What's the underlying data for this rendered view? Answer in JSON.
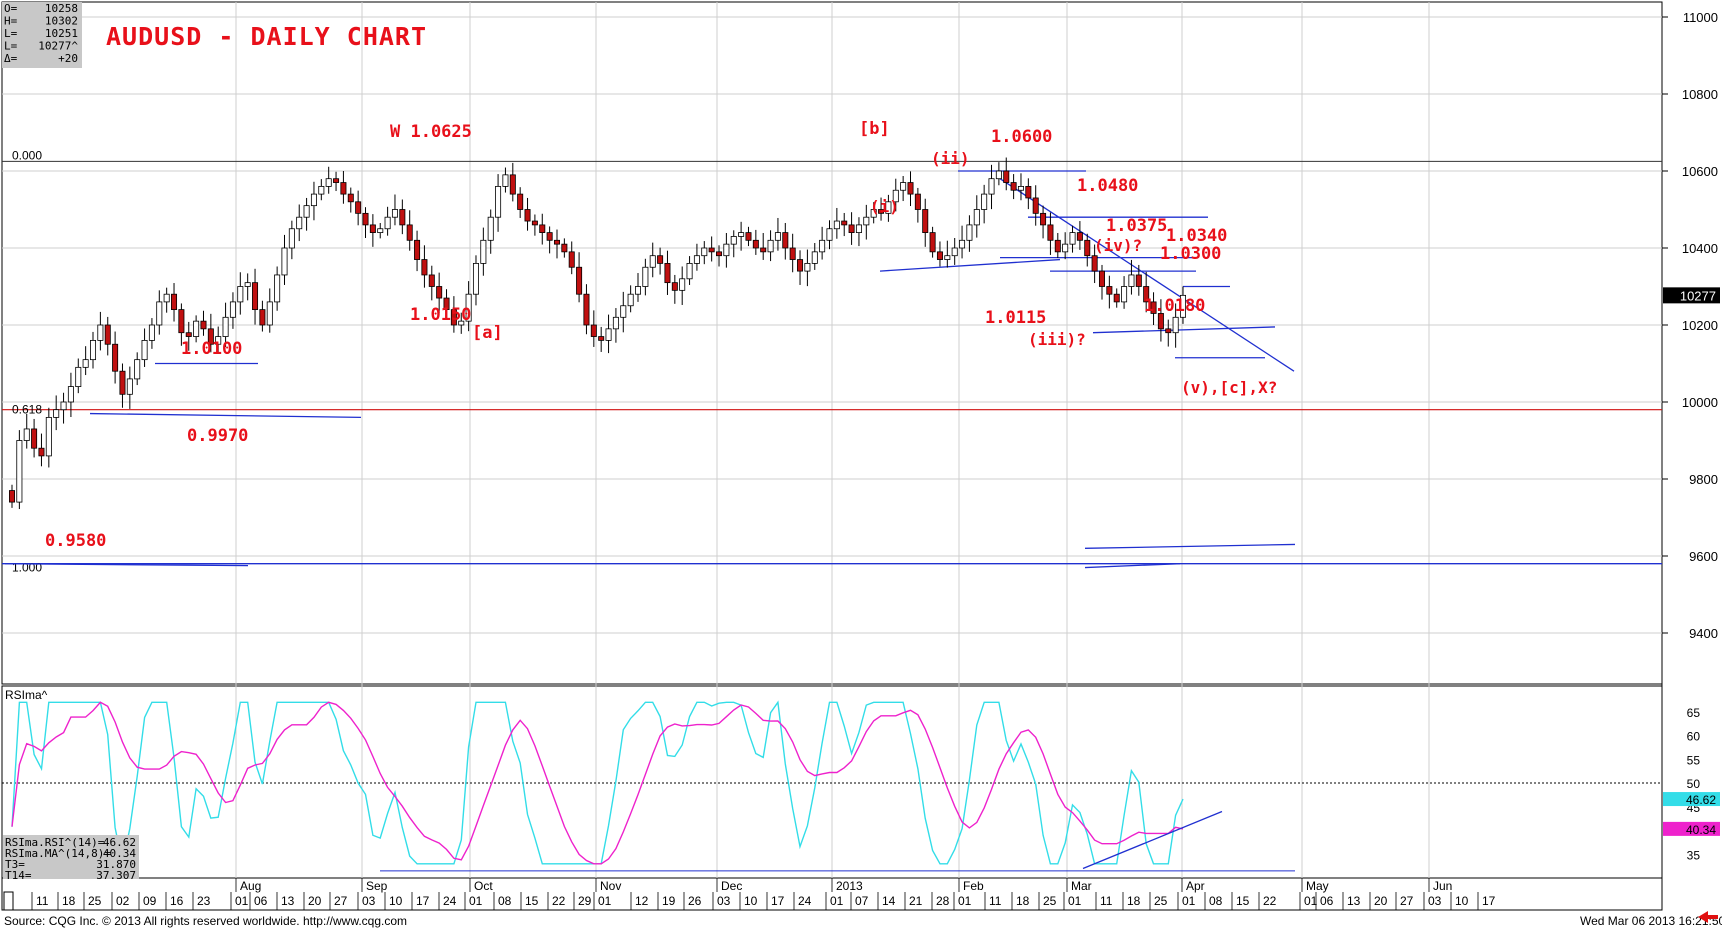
{
  "ohlc_box": [
    {
      "k": "O=",
      "v": "10258"
    },
    {
      "k": "H=",
      "v": "10302"
    },
    {
      "k": "L=",
      "v": "10251"
    },
    {
      "k": "L=",
      "v": "10277^"
    },
    {
      "k": "Δ=",
      "v": "+20"
    }
  ],
  "title": "AUDUSD - DAILY CHART",
  "price_axis": [
    "11000",
    "10800",
    "10600",
    "10400",
    "10200",
    "10000",
    "9800",
    "9600",
    "9400"
  ],
  "last_price": "10277",
  "fib_labels": {
    "top": "0.000",
    "mid": "0.618",
    "bottom": "1.000"
  },
  "annotations": [
    {
      "text": "W 1.0625",
      "dx": 390,
      "dy": 137,
      "size": 17
    },
    {
      "text": "1.0150",
      "dx": 410,
      "dy": 320,
      "size": 17
    },
    {
      "text": "[a]",
      "dx": 472,
      "dy": 338,
      "size": 17
    },
    {
      "text": "1.0100",
      "dx": 181,
      "dy": 354,
      "size": 17
    },
    {
      "text": "0.9970",
      "dx": 187,
      "dy": 441,
      "size": 17
    },
    {
      "text": "0.9580",
      "dx": 45,
      "dy": 546,
      "size": 17
    },
    {
      "text": "[b]",
      "dx": 859,
      "dy": 134,
      "size": 17
    },
    {
      "text": "1.0600",
      "dx": 991,
      "dy": 142,
      "size": 17
    },
    {
      "text": "(ii)",
      "dx": 931,
      "dy": 164,
      "size": 16
    },
    {
      "text": "(i)",
      "dx": 870,
      "dy": 212,
      "size": 16
    },
    {
      "text": "1.0480",
      "dx": 1077,
      "dy": 191,
      "size": 17
    },
    {
      "text": "1.0375",
      "dx": 1106,
      "dy": 231,
      "size": 17
    },
    {
      "text": "1.0340",
      "dx": 1166,
      "dy": 241,
      "size": 17
    },
    {
      "text": "(iv)?",
      "dx": 1094,
      "dy": 251,
      "size": 16
    },
    {
      "text": "1.0300",
      "dx": 1160,
      "dy": 259,
      "size": 17
    },
    {
      "text": "1.0180",
      "dx": 1144,
      "dy": 311,
      "size": 17
    },
    {
      "text": "1.0115",
      "dx": 985,
      "dy": 323,
      "size": 17
    },
    {
      "text": "(iii)?",
      "dx": 1028,
      "dy": 345,
      "size": 16
    },
    {
      "text": "(v),[c],X?",
      "dx": 1181,
      "dy": 393,
      "size": 16
    }
  ],
  "indicator": {
    "name": "RSIma^",
    "axis": [
      "65",
      "60",
      "55",
      "50",
      "45",
      "35"
    ],
    "rsi_value": "46.62",
    "ma_value": "40.34",
    "readout": [
      {
        "k": "RSIma.RSI^(14)=",
        "v": "46.62"
      },
      {
        "k": "RSIma.MA^(14,8)=",
        "v": "40.34"
      },
      {
        "k": "T3=",
        "v": "31.870"
      },
      {
        "k": "T14=",
        "v": "37.307"
      }
    ]
  },
  "x_axis": {
    "day_ticks": [
      {
        "t": "11",
        "x": 36
      },
      {
        "t": "18",
        "x": 62
      },
      {
        "t": "25",
        "x": 88
      },
      {
        "t": "02",
        "x": 116
      },
      {
        "t": "09",
        "x": 143
      },
      {
        "t": "16",
        "x": 170
      },
      {
        "t": "23",
        "x": 197
      },
      {
        "t": "01",
        "x": 235
      },
      {
        "t": "06",
        "x": 254
      },
      {
        "t": "13",
        "x": 281
      },
      {
        "t": "20",
        "x": 308
      },
      {
        "t": "27",
        "x": 334
      },
      {
        "t": "03",
        "x": 362
      },
      {
        "t": "10",
        "x": 389
      },
      {
        "t": "17",
        "x": 416
      },
      {
        "t": "24",
        "x": 443
      },
      {
        "t": "01",
        "x": 469
      },
      {
        "t": "08",
        "x": 498
      },
      {
        "t": "15",
        "x": 525
      },
      {
        "t": "22",
        "x": 552
      },
      {
        "t": "29",
        "x": 578
      },
      {
        "t": "01",
        "x": 598
      },
      {
        "t": "12",
        "x": 635
      },
      {
        "t": "19",
        "x": 662
      },
      {
        "t": "26",
        "x": 688
      },
      {
        "t": "03",
        "x": 717
      },
      {
        "t": "10",
        "x": 744
      },
      {
        "t": "17",
        "x": 771
      },
      {
        "t": "24",
        "x": 798
      },
      {
        "t": "01",
        "x": 830
      },
      {
        "t": "07",
        "x": 855
      },
      {
        "t": "14",
        "x": 882
      },
      {
        "t": "21",
        "x": 909
      },
      {
        "t": "28",
        "x": 936
      },
      {
        "t": "01",
        "x": 958
      },
      {
        "t": "11",
        "x": 989
      },
      {
        "t": "18",
        "x": 1016
      },
      {
        "t": "25",
        "x": 1043
      },
      {
        "t": "01",
        "x": 1068
      },
      {
        "t": "11",
        "x": 1100
      },
      {
        "t": "18",
        "x": 1127
      },
      {
        "t": "25",
        "x": 1154
      },
      {
        "t": "01",
        "x": 1182
      },
      {
        "t": "08",
        "x": 1209
      },
      {
        "t": "15",
        "x": 1236
      },
      {
        "t": "22",
        "x": 1263
      },
      {
        "t": "01",
        "x": 1304
      },
      {
        "t": "06",
        "x": 1320
      },
      {
        "t": "13",
        "x": 1347
      },
      {
        "t": "20",
        "x": 1374
      },
      {
        "t": "27",
        "x": 1400
      },
      {
        "t": "03",
        "x": 1428
      },
      {
        "t": "10",
        "x": 1455
      },
      {
        "t": "17",
        "x": 1482
      }
    ],
    "month_ticks": [
      {
        "t": "Aug",
        "x": 232
      },
      {
        "t": "Sep",
        "x": 358
      },
      {
        "t": "Oct",
        "x": 466
      },
      {
        "t": "Nov",
        "x": 592
      },
      {
        "t": "Dec",
        "x": 713
      },
      {
        "t": "2013",
        "x": 828
      },
      {
        "t": "Feb",
        "x": 955
      },
      {
        "t": "Mar",
        "x": 1063
      },
      {
        "t": "Apr",
        "x": 1178
      },
      {
        "t": "May",
        "x": 1298
      },
      {
        "t": "Jun",
        "x": 1425
      }
    ]
  },
  "footer": {
    "source": "Source: CQG Inc. © 2013 All rights reserved worldwide. http://www.cqg.com",
    "timestamp": "Wed Mar 06 2013 16:21:50"
  },
  "colors": {
    "background": "#ffffff",
    "candle_up": "#ffffff",
    "candle_down": "#c01010",
    "trendline": "#2030d0",
    "fib_red": "#d01010",
    "annotation": "#e8101a",
    "rsi": "#33dde8",
    "rsi_ma": "#ee22cc",
    "last_price_bg": "#000000"
  },
  "chart_data": {
    "type": "candlestick",
    "symbol": "AUDUSD",
    "title": "AUDUSD - DAILY CHART",
    "timeframe": "daily",
    "ylim": [
      9300,
      11050
    ],
    "closes": [
      9740,
      9900,
      9930,
      9880,
      9860,
      9960,
      9980,
      10000,
      10040,
      10090,
      10110,
      10160,
      10200,
      10150,
      10080,
      10020,
      10060,
      10110,
      10160,
      10200,
      10260,
      10280,
      10240,
      10180,
      10170,
      10210,
      10190,
      10150,
      10170,
      10220,
      10260,
      10300,
      10310,
      10240,
      10200,
      10260,
      10330,
      10400,
      10450,
      10480,
      10510,
      10540,
      10560,
      10580,
      10570,
      10540,
      10520,
      10490,
      10460,
      10440,
      10450,
      10480,
      10500,
      10460,
      10420,
      10370,
      10330,
      10300,
      10270,
      10240,
      10200,
      10210,
      10280,
      10360,
      10420,
      10480,
      10560,
      10590,
      10540,
      10500,
      10470,
      10460,
      10440,
      10420,
      10410,
      10390,
      10350,
      10280,
      10200,
      10170,
      10160,
      10190,
      10220,
      10250,
      10280,
      10300,
      10350,
      10380,
      10360,
      10310,
      10290,
      10320,
      10360,
      10380,
      10400,
      10390,
      10380,
      10410,
      10430,
      10440,
      10420,
      10400,
      10390,
      10420,
      10440,
      10400,
      10370,
      10340,
      10360,
      10390,
      10420,
      10450,
      10470,
      10460,
      10440,
      10460,
      10480,
      10500,
      10490,
      10520,
      10550,
      10570,
      10540,
      10500,
      10440,
      10390,
      10370,
      10380,
      10400,
      10420,
      10460,
      10500,
      10540,
      10580,
      10600,
      10570,
      10550,
      10560,
      10530,
      10490,
      10460,
      10420,
      10390,
      10410,
      10440,
      10420,
      10380,
      10340,
      10300,
      10280,
      10260,
      10300,
      10330,
      10300,
      10260,
      10230,
      10190,
      10180,
      10220,
      10277
    ],
    "series": [
      {
        "name": "RSIma.RSI^(14)",
        "last": 46.62
      },
      {
        "name": "RSIma.MA^(14,8)",
        "last": 40.34
      }
    ],
    "levels": [
      {
        "label": "0.000",
        "value": 10625
      },
      {
        "label": "0.618",
        "value": 9980
      },
      {
        "label": "1.000",
        "value": 9580
      }
    ],
    "rsi_ylim": [
      30,
      70
    ],
    "rsi_reference": 50
  }
}
